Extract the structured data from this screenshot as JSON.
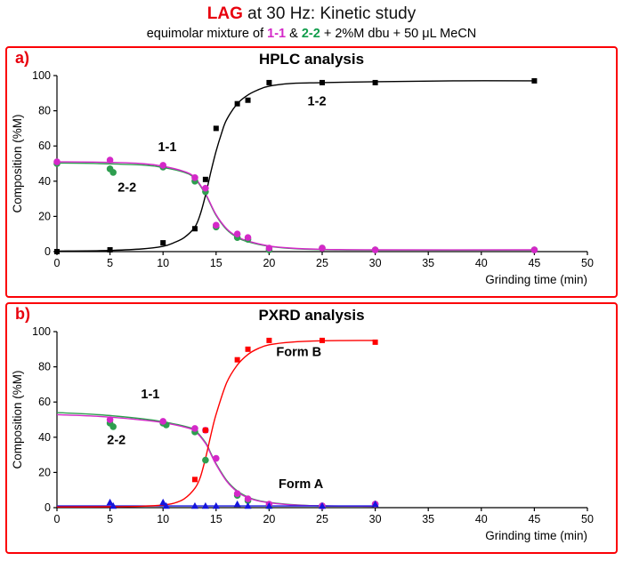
{
  "header": {
    "title_highlight": "LAG",
    "title_rest": " at 30 Hz: Kinetic study",
    "subtitle_prefix": "equimolar mixture of ",
    "compound_1": "1-1",
    "subtitle_mid": " & ",
    "compound_2": "2-2",
    "subtitle_suffix": " + 2%M dbu + 50 μL MeCN"
  },
  "colors": {
    "panel_border": "#fb0006",
    "magenta": "#d428c8",
    "green": "#2e9e4f",
    "blue": "#1515dd",
    "red": "#fe0000",
    "black": "#000000"
  },
  "chart_data": [
    {
      "type": "scatter",
      "panel_label": "a)",
      "title": "HPLC analysis",
      "xlabel": "Grinding time (min)",
      "ylabel": "Composition (%M)",
      "xlim": [
        0,
        50
      ],
      "ylim": [
        0,
        100
      ],
      "xticks": [
        0,
        5,
        10,
        15,
        20,
        25,
        30,
        35,
        40,
        45,
        50
      ],
      "yticks": [
        0,
        20,
        40,
        60,
        80,
        100
      ],
      "grid": false,
      "series": [
        {
          "name": "2-2",
          "color": "#2e9e4f",
          "marker": "circle",
          "label": {
            "x": 6.6,
            "y": 34
          },
          "points": [
            [
              0,
              50
            ],
            [
              5,
              47
            ],
            [
              5.3,
              45
            ],
            [
              10,
              48
            ],
            [
              13,
              40
            ],
            [
              14,
              34
            ],
            [
              15,
              14
            ],
            [
              17,
              8
            ],
            [
              18,
              7
            ],
            [
              20,
              1
            ],
            [
              25,
              2
            ],
            [
              30,
              1
            ],
            [
              45,
              1
            ]
          ],
          "trend": [
            [
              0,
              50.3
            ],
            [
              4,
              50
            ],
            [
              8,
              49.2
            ],
            [
              10,
              47.8
            ],
            [
              12,
              45
            ],
            [
              13,
              41.5
            ],
            [
              14,
              32.5
            ],
            [
              15,
              20.5
            ],
            [
              16,
              12.5
            ],
            [
              17,
              8
            ],
            [
              18,
              5.6
            ],
            [
              20,
              3
            ],
            [
              22,
              1.8
            ],
            [
              25,
              1.1
            ],
            [
              30,
              0.9
            ],
            [
              45,
              0.9
            ]
          ]
        },
        {
          "name": "1-1",
          "color": "#d428c8",
          "marker": "circle",
          "label": {
            "x": 10.4,
            "y": 57
          },
          "points": [
            [
              0,
              51
            ],
            [
              5,
              52
            ],
            [
              10,
              49
            ],
            [
              13,
              42
            ],
            [
              14,
              36
            ],
            [
              15,
              15
            ],
            [
              17,
              10
            ],
            [
              18,
              8
            ],
            [
              20,
              2
            ],
            [
              25,
              2
            ],
            [
              30,
              1
            ],
            [
              45,
              1
            ]
          ],
          "trend": [
            [
              0,
              51
            ],
            [
              4,
              50.8
            ],
            [
              8,
              50
            ],
            [
              10,
              48.5
            ],
            [
              12,
              45.5
            ],
            [
              13,
              42
            ],
            [
              14,
              33
            ],
            [
              15,
              21
            ],
            [
              16,
              13
            ],
            [
              17,
              8.5
            ],
            [
              18,
              6
            ],
            [
              20,
              3.2
            ],
            [
              22,
              2
            ],
            [
              25,
              1.3
            ],
            [
              30,
              1
            ],
            [
              45,
              1
            ]
          ]
        },
        {
          "name": "1-2",
          "color": "#000000",
          "marker": "square",
          "label": {
            "x": 24.5,
            "y": 83
          },
          "points": [
            [
              0,
              0
            ],
            [
              5,
              1
            ],
            [
              10,
              5
            ],
            [
              13,
              13
            ],
            [
              14,
              41
            ],
            [
              15,
              70
            ],
            [
              17,
              84
            ],
            [
              18,
              86
            ],
            [
              20,
              96
            ],
            [
              25,
              96
            ],
            [
              30,
              96
            ],
            [
              45,
              97
            ]
          ],
          "trend": [
            [
              0,
              0.3
            ],
            [
              4,
              0.5
            ],
            [
              8,
              1.5
            ],
            [
              10,
              3
            ],
            [
              11,
              5
            ],
            [
              12,
              8
            ],
            [
              13,
              14
            ],
            [
              13.5,
              21
            ],
            [
              14,
              32
            ],
            [
              14.5,
              45
            ],
            [
              15,
              57
            ],
            [
              15.5,
              67
            ],
            [
              16,
              75
            ],
            [
              17,
              84
            ],
            [
              18,
              89
            ],
            [
              19,
              92
            ],
            [
              20,
              94
            ],
            [
              22,
              95.5
            ],
            [
              25,
              96
            ],
            [
              30,
              96.5
            ],
            [
              38,
              97
            ],
            [
              45,
              97
            ]
          ]
        }
      ]
    },
    {
      "type": "scatter",
      "panel_label": "b)",
      "title": "PXRD analysis",
      "xlabel": "Grinding time (min)",
      "ylabel": "Composition (%M)",
      "xlim": [
        0,
        50
      ],
      "ylim": [
        0,
        100
      ],
      "xticks": [
        0,
        5,
        10,
        15,
        20,
        25,
        30,
        35,
        40,
        45,
        50
      ],
      "yticks": [
        0,
        20,
        40,
        60,
        80,
        100
      ],
      "grid": false,
      "series": [
        {
          "name": "2-2",
          "color": "#2e9e4f",
          "marker": "circle",
          "label": {
            "x": 5.6,
            "y": 36
          },
          "points": [
            [
              5,
              48
            ],
            [
              5.3,
              46
            ],
            [
              10,
              48
            ],
            [
              10.3,
              47
            ],
            [
              13,
              43
            ],
            [
              14,
              27
            ],
            [
              17,
              7
            ],
            [
              18,
              4
            ],
            [
              20,
              1
            ],
            [
              25,
              1
            ],
            [
              30,
              2
            ]
          ],
          "trend": [
            [
              0,
              54
            ],
            [
              4,
              52.8
            ],
            [
              8,
              50.5
            ],
            [
              10,
              48.8
            ],
            [
              12,
              46.3
            ],
            [
              13,
              44
            ],
            [
              14,
              37
            ],
            [
              14.5,
              31
            ],
            [
              15,
              25
            ],
            [
              16,
              15.5
            ],
            [
              17,
              9.5
            ],
            [
              18,
              6
            ],
            [
              19,
              4
            ],
            [
              20,
              3
            ],
            [
              22,
              1.8
            ],
            [
              25,
              1
            ],
            [
              30,
              0.8
            ]
          ]
        },
        {
          "name": "1-1",
          "color": "#d428c8",
          "marker": "circle",
          "label": {
            "x": 8.8,
            "y": 62
          },
          "points": [
            [
              5,
              50
            ],
            [
              10,
              49
            ],
            [
              13,
              45
            ],
            [
              14,
              44
            ],
            [
              15,
              28
            ],
            [
              17,
              8
            ],
            [
              18,
              5
            ],
            [
              20,
              2
            ],
            [
              25,
              1
            ],
            [
              30,
              2
            ]
          ],
          "trend": [
            [
              0,
              52.8
            ],
            [
              4,
              51.8
            ],
            [
              8,
              49.8
            ],
            [
              10,
              48.3
            ],
            [
              12,
              45.8
            ],
            [
              13,
              43.5
            ],
            [
              14,
              36.5
            ],
            [
              14.5,
              30.5
            ],
            [
              15,
              24.5
            ],
            [
              16,
              15
            ],
            [
              17,
              9
            ],
            [
              18,
              5.6
            ],
            [
              19,
              3.8
            ],
            [
              20,
              2.8
            ],
            [
              22,
              1.6
            ],
            [
              25,
              1
            ],
            [
              30,
              0.8
            ]
          ]
        },
        {
          "name": "Form A",
          "color": "#1515dd",
          "marker": "triangle",
          "label": {
            "x": 23,
            "y": 11
          },
          "points": [
            [
              5,
              3
            ],
            [
              5.3,
              1
            ],
            [
              10,
              3
            ],
            [
              10.3,
              1
            ],
            [
              13,
              1
            ],
            [
              14,
              1
            ],
            [
              15,
              1
            ],
            [
              17,
              2
            ],
            [
              18,
              1
            ],
            [
              20,
              1
            ],
            [
              25,
              1
            ],
            [
              30,
              2
            ]
          ],
          "trend": [
            [
              0,
              1
            ],
            [
              30,
              1
            ]
          ]
        },
        {
          "name": "Form B",
          "color": "#fe0000",
          "marker": "square",
          "label": {
            "x": 22.8,
            "y": 86
          },
          "points": [
            [
              13,
              16
            ],
            [
              14,
              44
            ],
            [
              17,
              84
            ],
            [
              18,
              90
            ],
            [
              20,
              95
            ],
            [
              25,
              95
            ],
            [
              30,
              94
            ]
          ],
          "trend": [
            [
              0,
              0.4
            ],
            [
              5,
              0.5
            ],
            [
              8,
              0.8
            ],
            [
              10,
              1.5
            ],
            [
              11,
              2.5
            ],
            [
              12,
              5
            ],
            [
              13,
              11
            ],
            [
              13.5,
              17
            ],
            [
              14,
              28
            ],
            [
              14.5,
              41
            ],
            [
              15,
              53
            ],
            [
              16,
              71
            ],
            [
              17,
              81
            ],
            [
              18,
              87
            ],
            [
              19,
              90.5
            ],
            [
              20,
              92.5
            ],
            [
              22,
              94
            ],
            [
              25,
              94.8
            ],
            [
              30,
              95
            ]
          ]
        }
      ]
    }
  ]
}
